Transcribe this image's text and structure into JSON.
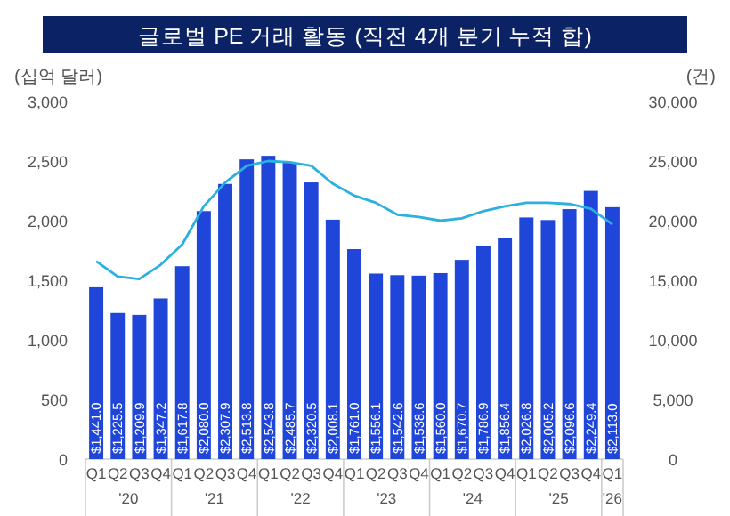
{
  "chart_data": {
    "type": "bar",
    "title": "글로벌 PE 거래 활동 (직전 4개 분기 누적 합)",
    "ylabel": "(십억 달러)",
    "y2label": "(건)",
    "categories": [
      "Q1",
      "Q2",
      "Q3",
      "Q4",
      "Q1",
      "Q2",
      "Q3",
      "Q4",
      "Q1",
      "Q2",
      "Q3",
      "Q4",
      "Q1",
      "Q2",
      "Q3",
      "Q4",
      "Q1",
      "Q2",
      "Q3",
      "Q4",
      "Q1",
      "Q2",
      "Q3",
      "Q4",
      "Q1"
    ],
    "series": [
      {
        "color": "#1f46d8",
        "values": [
          1441.0,
          1225.5,
          1209.9,
          1347.2,
          1617.8,
          2080.0,
          2307.9,
          2513.8,
          2543.8,
          2485.7,
          2320.5,
          2008.1,
          1761.0,
          1556.1,
          1542.6,
          1538.6,
          1560.0,
          1670.7,
          1786.9,
          1856.4,
          2026.8,
          2005.2,
          2096.6,
          2249.4,
          2113.0
        ],
        "value_labels": [
          "$1,441.0",
          "$1,225.5",
          "$1,209.9",
          "$1,347.2",
          "$1,617.8",
          "$2,080.0",
          "$2,307.9",
          "$2,513.8",
          "$2,543.8",
          "$2,485.7",
          "$2,320.5",
          "$2,008.1",
          "$1,761.0",
          "$1,556.1",
          "$1,542.6",
          "$1,538.6",
          "$1,560.0",
          "$1,670.7",
          "$1,786.9",
          "$1,856.4",
          "$2,026.8",
          "$2,005.2",
          "$2,096.6",
          "$2,249.4",
          "$2,113.0"
        ]
      },
      {
        "type": "line",
        "axis": "y2",
        "color": "#2bb0e0",
        "values": [
          16600,
          15300,
          15100,
          16300,
          18000,
          21200,
          23200,
          24600,
          25000,
          24900,
          24600,
          23100,
          22100,
          21500,
          20500,
          20300,
          20000,
          20200,
          20800,
          21200,
          21500,
          21500,
          21400,
          21000,
          19700
        ]
      }
    ],
    "ylim": [
      0,
      3000
    ],
    "yticks": [
      0,
      {
        "value": 500,
        "label": "500"
      },
      {
        "value": 1000,
        "label": "1,000"
      },
      {
        "value": 1500,
        "label": "1,500"
      },
      {
        "value": 2000,
        "label": "2,000"
      },
      {
        "value": 2500,
        "label": "2,500"
      },
      {
        "value": 3000,
        "label": "3,000"
      }
    ],
    "y2lim": [
      0,
      30000
    ],
    "y2ticks": [
      0,
      {
        "value": 5000,
        "label": "5,000"
      },
      {
        "value": 10000,
        "label": "10,000"
      },
      {
        "value": 15000,
        "label": "15,000"
      },
      {
        "value": 20000,
        "label": "20,000"
      },
      {
        "value": 25000,
        "label": "25,000"
      },
      {
        "value": 30000,
        "label": "30,000"
      }
    ],
    "annotations": [
      "'20",
      "'21",
      "'22",
      "'23",
      "'24",
      "'25",
      "'26"
    ]
  }
}
